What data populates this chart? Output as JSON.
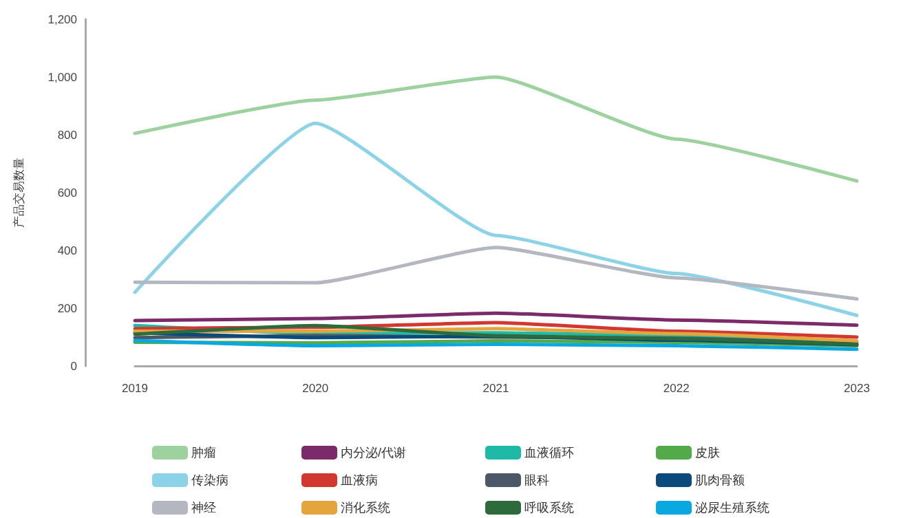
{
  "chart_data": {
    "type": "line",
    "ylabel": "产品交易数量",
    "categories": [
      "2019",
      "2020",
      "2021",
      "2022",
      "2023"
    ],
    "ylim": [
      0,
      1200
    ],
    "yticks": [
      0,
      200,
      400,
      600,
      800,
      {
        "value": 1000,
        "label": "1,000"
      },
      {
        "value": 1200,
        "label": "1,200"
      }
    ],
    "grid": false,
    "legend": "bottom",
    "marker": "none",
    "line_style": "solid",
    "series": [
      {
        "name": "肿瘤",
        "color": "#9dd29f",
        "values": [
          805,
          920,
          1000,
          785,
          640
        ]
      },
      {
        "name": "内分泌/代谢",
        "color": "#7b2a6a",
        "values": [
          157,
          164,
          183,
          159,
          141
        ]
      },
      {
        "name": "血液循环",
        "color": "#1fb9a8",
        "values": [
          140,
          112,
          115,
          105,
          82
        ]
      },
      {
        "name": "皮肤",
        "color": "#52ab48",
        "values": [
          82,
          80,
          87,
          82,
          70
        ]
      },
      {
        "name": "传染病",
        "color": "#8dd3e8",
        "values": [
          255,
          840,
          452,
          320,
          175
        ]
      },
      {
        "name": "血液病",
        "color": "#d03831",
        "values": [
          129,
          134,
          150,
          120,
          100
        ]
      },
      {
        "name": "眼科",
        "color": "#4a5868",
        "values": [
          98,
          105,
          100,
          96,
          76
        ]
      },
      {
        "name": "肌肉骨额",
        "color": "#0b4a7a",
        "values": [
          115,
          98,
          103,
          89,
          73
        ]
      },
      {
        "name": "神经",
        "color": "#b4b6c0",
        "values": [
          290,
          288,
          410,
          305,
          232
        ]
      },
      {
        "name": "消化系统",
        "color": "#e5a53d",
        "values": [
          120,
          120,
          129,
          112,
          87
        ]
      },
      {
        "name": "呼吸系统",
        "color": "#2e6b3c",
        "values": [
          110,
          140,
          105,
          94,
          75
        ]
      },
      {
        "name": "泌尿生殖系统",
        "color": "#0aa8e0",
        "values": [
          88,
          70,
          75,
          70,
          58
        ]
      }
    ]
  }
}
